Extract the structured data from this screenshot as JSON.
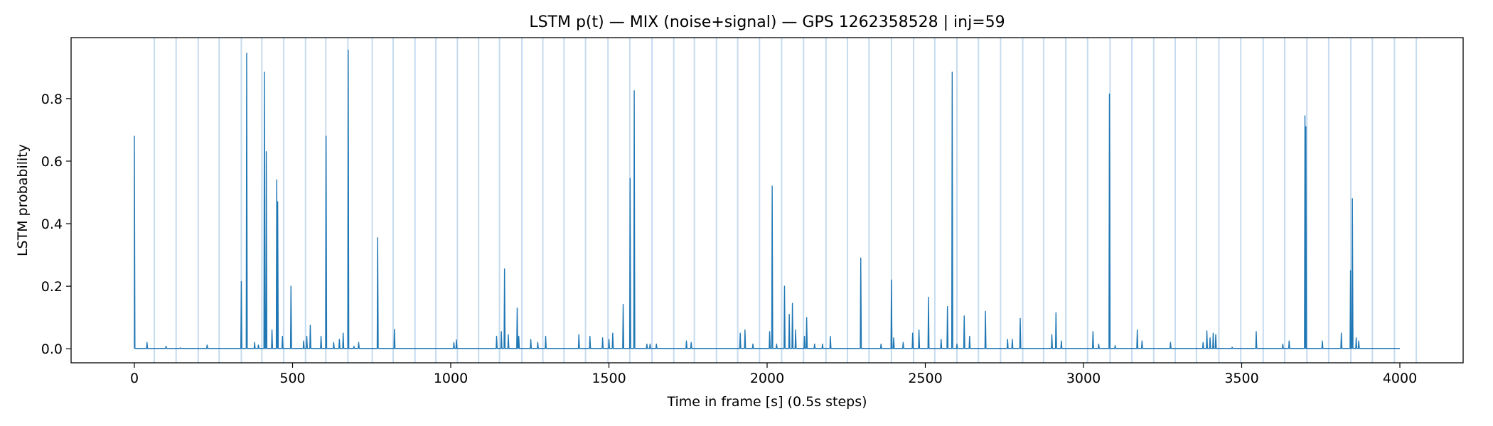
{
  "chart_data": {
    "type": "line",
    "title": "LSTM p(t) — MIX (noise+signal) — GPS 1262358528 | inj=59",
    "xlabel": "Time in frame [s] (0.5s steps)",
    "ylabel": "LSTM probability",
    "xlim": [
      -200,
      4200
    ],
    "ylim": [
      -0.045,
      0.995
    ],
    "xticks": [
      {
        "value": 0,
        "label": "0"
      },
      {
        "value": 500,
        "label": "500"
      },
      {
        "value": 1000,
        "label": "1000"
      },
      {
        "value": 1500,
        "label": "1500"
      },
      {
        "value": 2000,
        "label": "2000"
      },
      {
        "value": 2500,
        "label": "2500"
      },
      {
        "value": 3000,
        "label": "3000"
      },
      {
        "value": 3500,
        "label": "3500"
      },
      {
        "value": 4000,
        "label": "4000"
      }
    ],
    "yticks": [
      {
        "value": 0.0,
        "label": "0.0"
      },
      {
        "value": 0.2,
        "label": "0.2"
      },
      {
        "value": 0.4,
        "label": "0.4"
      },
      {
        "value": 0.6,
        "label": "0.6"
      },
      {
        "value": 0.8,
        "label": "0.8"
      }
    ],
    "grid": false,
    "colors": {
      "line": "#1f77b4",
      "injection": "#c6dbef"
    },
    "x_range": [
      0,
      4000
    ],
    "baseline": 0.001,
    "injections": [
      63,
      132,
      202,
      268,
      338,
      403,
      472,
      541,
      605,
      675,
      752,
      818,
      887,
      953,
      1021,
      1088,
      1154,
      1225,
      1291,
      1358,
      1426,
      1497,
      1566,
      1636,
      1705,
      1770,
      1840,
      1907,
      1976,
      2046,
      2115,
      2186,
      2254,
      2322,
      2393,
      2463,
      2530,
      2600,
      2668,
      2738,
      2808,
      2874,
      2944,
      3013,
      3084,
      3153,
      3222,
      3290,
      3357,
      3428,
      3497,
      3568,
      3636,
      3706,
      3775,
      3845,
      3913,
      3983,
      4052
    ],
    "series": [
      {
        "values": [
          [
            0,
            0.68
          ],
          [
            40,
            0.02
          ],
          [
            100,
            0.008
          ],
          [
            145,
            0.003
          ],
          [
            230,
            0.012
          ],
          [
            338,
            0.215
          ],
          [
            355,
            0.945
          ],
          [
            380,
            0.02
          ],
          [
            392,
            0.012
          ],
          [
            411,
            0.885
          ],
          [
            417,
            0.63
          ],
          [
            435,
            0.06
          ],
          [
            450,
            0.54
          ],
          [
            453,
            0.47
          ],
          [
            468,
            0.04
          ],
          [
            495,
            0.2
          ],
          [
            535,
            0.025
          ],
          [
            545,
            0.04
          ],
          [
            556,
            0.075
          ],
          [
            590,
            0.04
          ],
          [
            606,
            0.68
          ],
          [
            630,
            0.02
          ],
          [
            648,
            0.03
          ],
          [
            660,
            0.05
          ],
          [
            676,
            0.955
          ],
          [
            694,
            0.008
          ],
          [
            709,
            0.02
          ],
          [
            769,
            0.355
          ],
          [
            822,
            0.062
          ],
          [
            1010,
            0.02
          ],
          [
            1018,
            0.028
          ],
          [
            1145,
            0.04
          ],
          [
            1160,
            0.055
          ],
          [
            1170,
            0.255
          ],
          [
            1182,
            0.045
          ],
          [
            1210,
            0.13
          ],
          [
            1215,
            0.04
          ],
          [
            1253,
            0.03
          ],
          [
            1275,
            0.02
          ],
          [
            1300,
            0.04
          ],
          [
            1405,
            0.045
          ],
          [
            1440,
            0.04
          ],
          [
            1480,
            0.035
          ],
          [
            1500,
            0.03
          ],
          [
            1512,
            0.05
          ],
          [
            1545,
            0.142
          ],
          [
            1567,
            0.545
          ],
          [
            1580,
            0.825
          ],
          [
            1620,
            0.015
          ],
          [
            1630,
            0.015
          ],
          [
            1650,
            0.015
          ],
          [
            1760,
            0.02
          ],
          [
            1745,
            0.025
          ],
          [
            1915,
            0.05
          ],
          [
            1930,
            0.06
          ],
          [
            1955,
            0.015
          ],
          [
            2008,
            0.055
          ],
          [
            2016,
            0.52
          ],
          [
            2030,
            0.015
          ],
          [
            2055,
            0.2
          ],
          [
            2070,
            0.11
          ],
          [
            2080,
            0.145
          ],
          [
            2090,
            0.06
          ],
          [
            2118,
            0.04
          ],
          [
            2125,
            0.1
          ],
          [
            2150,
            0.015
          ],
          [
            2175,
            0.015
          ],
          [
            2200,
            0.04
          ],
          [
            2296,
            0.29
          ],
          [
            2360,
            0.015
          ],
          [
            2393,
            0.22
          ],
          [
            2400,
            0.035
          ],
          [
            2430,
            0.02
          ],
          [
            2460,
            0.05
          ],
          [
            2480,
            0.06
          ],
          [
            2510,
            0.165
          ],
          [
            2550,
            0.03
          ],
          [
            2570,
            0.135
          ],
          [
            2585,
            0.885
          ],
          [
            2600,
            0.015
          ],
          [
            2623,
            0.105
          ],
          [
            2640,
            0.04
          ],
          [
            2690,
            0.12
          ],
          [
            2760,
            0.03
          ],
          [
            2775,
            0.03
          ],
          [
            2800,
            0.097
          ],
          [
            2900,
            0.045
          ],
          [
            2913,
            0.115
          ],
          [
            2930,
            0.025
          ],
          [
            3030,
            0.055
          ],
          [
            3048,
            0.015
          ],
          [
            3082,
            0.815
          ],
          [
            3100,
            0.01
          ],
          [
            3170,
            0.06
          ],
          [
            3185,
            0.025
          ],
          [
            3275,
            0.02
          ],
          [
            3378,
            0.02
          ],
          [
            3390,
            0.057
          ],
          [
            3400,
            0.035
          ],
          [
            3410,
            0.05
          ],
          [
            3418,
            0.045
          ],
          [
            3470,
            0.005
          ],
          [
            3546,
            0.055
          ],
          [
            3630,
            0.015
          ],
          [
            3650,
            0.025
          ],
          [
            3700,
            0.745
          ],
          [
            3703,
            0.71
          ],
          [
            3755,
            0.025
          ],
          [
            3815,
            0.05
          ],
          [
            3844,
            0.25
          ],
          [
            3850,
            0.48
          ],
          [
            3862,
            0.035
          ],
          [
            3870,
            0.025
          ]
        ]
      }
    ]
  }
}
